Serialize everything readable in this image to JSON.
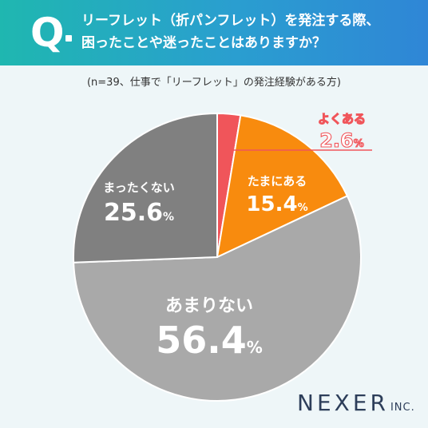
{
  "question": {
    "mark": "Q",
    "line1": "リーフレット（折パンフレット）を発注する際、",
    "line2": "困ったことや迷ったことはありますか？"
  },
  "note": "(n=39、仕事で「リーフレット」の発注経験がある方)",
  "logo": {
    "main": "NEXER",
    "suffix": "INC."
  },
  "chart_data": {
    "type": "pie",
    "title": "",
    "unit": "%",
    "slices": [
      {
        "label": "よくある",
        "value": 2.6,
        "value_text": "2.6",
        "color": "#f0555a"
      },
      {
        "label": "たまにある",
        "value": 15.4,
        "value_text": "15.4",
        "color": "#f88b0e"
      },
      {
        "label": "あまりない",
        "value": 56.4,
        "value_text": "56.4",
        "color": "#a9a9a9"
      },
      {
        "label": "まったくない",
        "value": 25.6,
        "value_text": "25.6",
        "color": "#808080"
      }
    ]
  }
}
